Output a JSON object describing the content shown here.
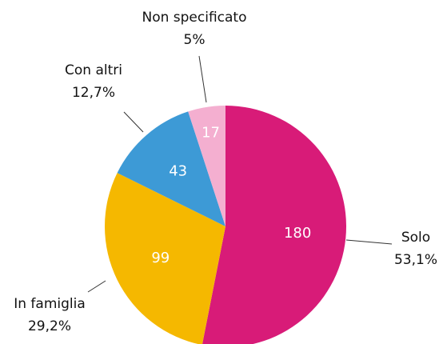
{
  "chart_data": {
    "type": "pie",
    "categories": [
      "Solo",
      "In famiglia",
      "Con altri",
      "Non specificato"
    ],
    "values": [
      180,
      99,
      43,
      17
    ],
    "percentages": [
      53.1,
      29.2,
      12.7,
      5
    ],
    "percentage_labels": [
      "53,1%",
      "29,2%",
      "12,7%",
      "5%"
    ],
    "colors": [
      "#d81b78",
      "#f5b800",
      "#3d9ad6",
      "#f4afd0"
    ]
  }
}
